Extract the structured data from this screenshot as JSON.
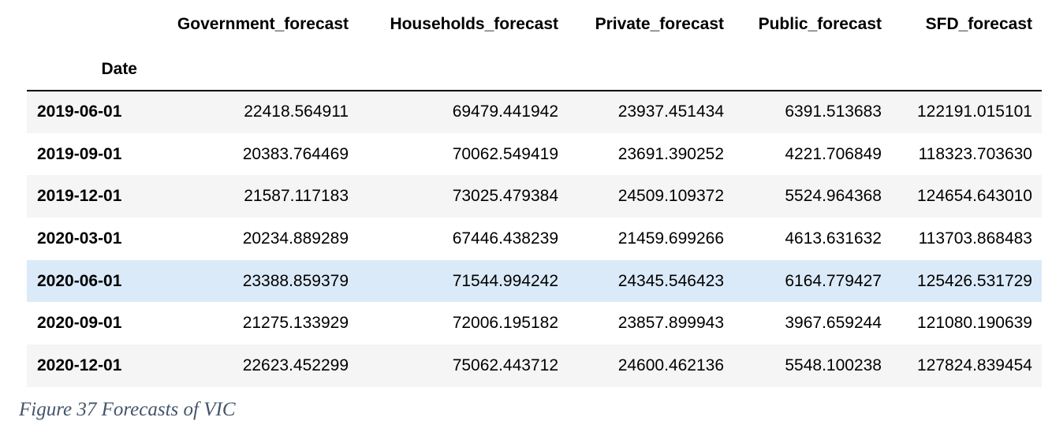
{
  "table": {
    "columns": [
      "Government_forecast",
      "Households_forecast",
      "Private_forecast",
      "Public_forecast",
      "SFD_forecast"
    ],
    "index_name": "Date",
    "rows": [
      {
        "date": "2019-06-01",
        "values": [
          "22418.564911",
          "69479.441942",
          "23937.451434",
          "6391.513683",
          "122191.015101"
        ]
      },
      {
        "date": "2019-09-01",
        "values": [
          "20383.764469",
          "70062.549419",
          "23691.390252",
          "4221.706849",
          "118323.703630"
        ]
      },
      {
        "date": "2019-12-01",
        "values": [
          "21587.117183",
          "73025.479384",
          "24509.109372",
          "5524.964368",
          "124654.643010"
        ]
      },
      {
        "date": "2020-03-01",
        "values": [
          "20234.889289",
          "67446.438239",
          "21459.699266",
          "4613.631632",
          "113703.868483"
        ]
      },
      {
        "date": "2020-06-01",
        "values": [
          "23388.859379",
          "71544.994242",
          "24345.546423",
          "6164.779427",
          "125426.531729"
        ]
      },
      {
        "date": "2020-09-01",
        "values": [
          "21275.133929",
          "72006.195182",
          "23857.899943",
          "3967.659244",
          "121080.190639"
        ]
      },
      {
        "date": "2020-12-01",
        "values": [
          "22623.452299",
          "75062.443712",
          "24600.462136",
          "5548.100238",
          "127824.839454"
        ]
      }
    ],
    "highlighted_row": 4
  },
  "caption": "Figure 37 Forecasts of VIC"
}
